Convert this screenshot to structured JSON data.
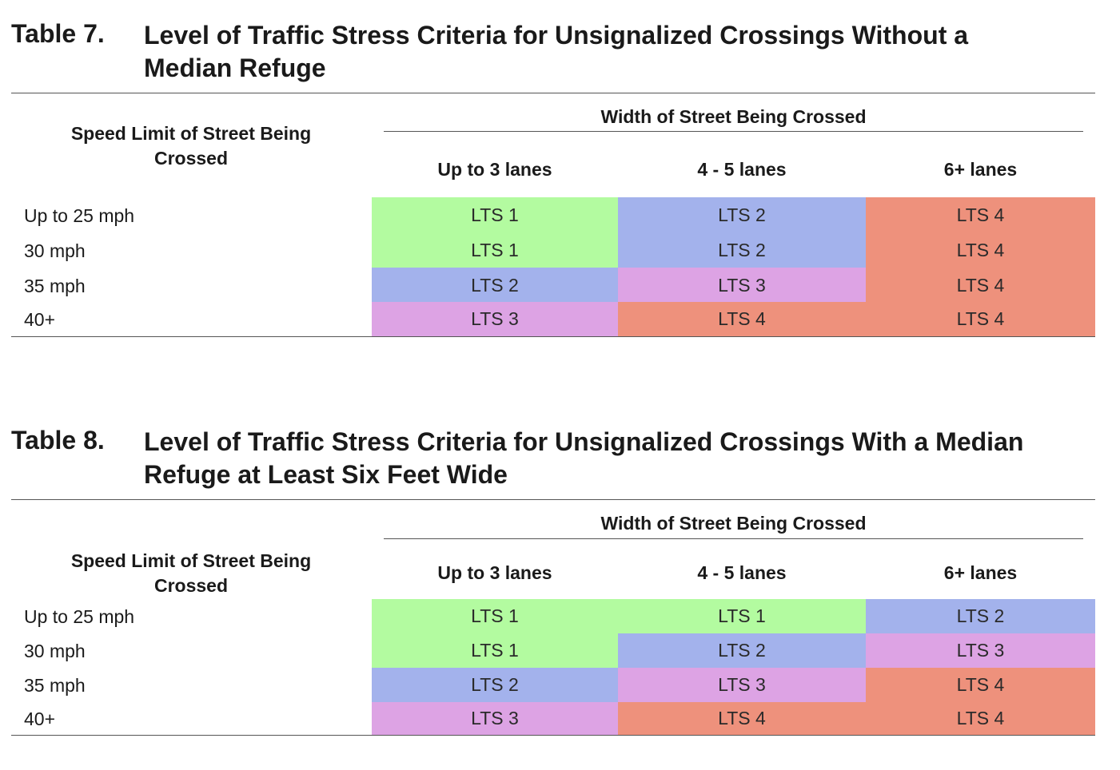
{
  "lts_colors": {
    "LTS 1": "#b3fba0",
    "LTS 2": "#a3b2ec",
    "LTS 3": "#dda3e4",
    "LTS 4": "#ee917c"
  },
  "tables": [
    {
      "number": "Table 7.",
      "title_line1": "Level of Traffic Stress Criteria for Unsignalized Crossings Without a",
      "title_line2": "Median Refuge",
      "speed_header_line1": "Speed Limit of Street Being",
      "speed_header_line2": "Crossed",
      "width_header": "Width of Street Being Crossed",
      "columns": [
        "Up to 3 lanes",
        "4 - 5 lanes",
        "6+ lanes"
      ],
      "rows": [
        {
          "label": "Up to 25 mph",
          "cells": [
            "LTS 1",
            "LTS 2",
            "LTS 4"
          ]
        },
        {
          "label": "30 mph",
          "cells": [
            "LTS 1",
            "LTS 2",
            "LTS 4"
          ]
        },
        {
          "label": "35 mph",
          "cells": [
            "LTS 2",
            "LTS 3",
            "LTS 4"
          ]
        },
        {
          "label": "40+",
          "cells": [
            "LTS 3",
            "LTS 4",
            "LTS 4"
          ]
        }
      ]
    },
    {
      "number": "Table 8.",
      "title_line1": "Level of Traffic Stress Criteria for Unsignalized Crossings With a Median",
      "title_line2": "Refuge at Least Six Feet Wide",
      "speed_header_line1": "Speed Limit of Street Being",
      "speed_header_line2": "Crossed",
      "width_header": "Width of Street Being Crossed",
      "columns": [
        "Up to 3 lanes",
        "4 - 5 lanes",
        "6+ lanes"
      ],
      "rows": [
        {
          "label": "Up to 25 mph",
          "cells": [
            "LTS 1",
            "LTS 1",
            "LTS 2"
          ]
        },
        {
          "label": "30 mph",
          "cells": [
            "LTS 1",
            "LTS 2",
            "LTS 3"
          ]
        },
        {
          "label": "35 mph",
          "cells": [
            "LTS 2",
            "LTS 3",
            "LTS 4"
          ]
        },
        {
          "label": "40+",
          "cells": [
            "LTS 3",
            "LTS 4",
            "LTS 4"
          ]
        }
      ]
    }
  ]
}
